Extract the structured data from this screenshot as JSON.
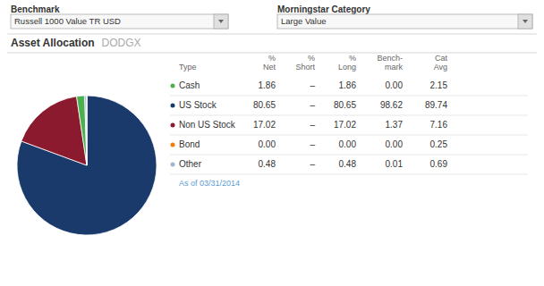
{
  "chart_data": [
    {
      "type": "pie",
      "title": "Asset Allocation",
      "subtitle": "DODGX",
      "values": [
        80.65,
        17.02,
        1.86,
        0.48,
        0.0
      ],
      "colors": [
        "#1a3a6b",
        "#8b1a2e",
        "#4caf50",
        "#9db8d2",
        "#f57c00"
      ],
      "annotations": [
        "Benchmark",
        "Russell 1000 Value TR USD",
        "Morningstar Category",
        "Large Value",
        "As of 03/31/2014"
      ]
    },
    {
      "type": "table",
      "columns": [
        [
          "Type"
        ],
        [
          "%",
          "Net"
        ],
        [
          "%",
          "Short"
        ],
        [
          "%",
          "Long"
        ],
        [
          "Bench-",
          "mark"
        ],
        [
          "Cat",
          "Avg"
        ]
      ],
      "rows": [
        [
          "Cash",
          "1.86",
          "–",
          "1.86",
          "0.00",
          "2.15"
        ],
        [
          "US Stock",
          "80.65",
          "–",
          "80.65",
          "98.62",
          "89.74"
        ],
        [
          "Non US Stock",
          "17.02",
          "–",
          "17.02",
          "1.37",
          "7.16"
        ],
        [
          "Bond",
          "0.00",
          "–",
          "0.00",
          "0.00",
          "0.25"
        ],
        [
          "Other",
          "0.48",
          "–",
          "0.48",
          "0.01",
          "0.69"
        ]
      ],
      "colors": [
        "#4caf50",
        "#1a3a6b",
        "#8b1a2e",
        "#f57c00",
        "#9db8d2"
      ]
    }
  ]
}
